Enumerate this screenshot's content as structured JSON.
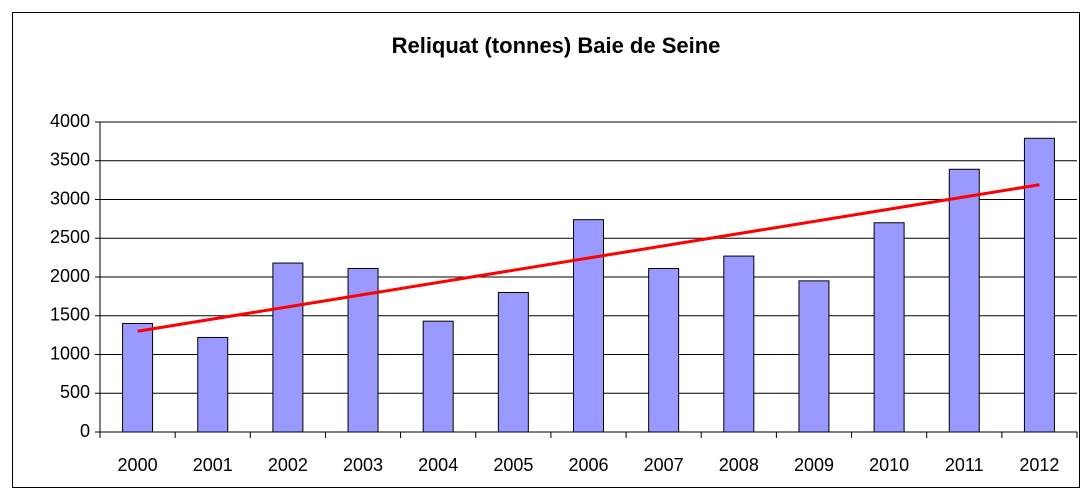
{
  "chart_data": {
    "type": "bar",
    "title": "Reliquat (tonnes) Baie de Seine",
    "categories": [
      "2000",
      "2001",
      "2002",
      "2003",
      "2004",
      "2005",
      "2006",
      "2007",
      "2008",
      "2009",
      "2010",
      "2011",
      "2012"
    ],
    "values": [
      1400,
      1220,
      2180,
      2110,
      1430,
      1800,
      2740,
      2110,
      2270,
      1950,
      2700,
      3390,
      3790
    ],
    "color": "#9999ff",
    "trendline": {
      "color": "#ff0000",
      "values": [
        1300,
        3190
      ]
    },
    "ylim": [
      0,
      4000
    ],
    "yticks": [
      0,
      500,
      1000,
      1500,
      2000,
      2500,
      3000,
      3500,
      4000
    ],
    "grid": true
  }
}
